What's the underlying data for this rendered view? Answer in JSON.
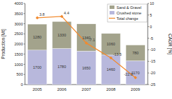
{
  "chart_data": {
    "type": "bar",
    "stacked": true,
    "categories": [
      "2005",
      "2006",
      "2007",
      "2008",
      "2009"
    ],
    "y_label": "Production [Mt]",
    "y2_label": "CAGR [%]",
    "ylim": [
      0,
      4000
    ],
    "yticks": [
      0,
      500,
      1000,
      1500,
      2000,
      2500,
      3000,
      3500,
      4000
    ],
    "y2lim": [
      -25,
      10
    ],
    "y2ticks": [
      -25,
      -20,
      -15,
      -10,
      -5,
      0,
      5,
      10
    ],
    "legend": "top-right",
    "data_labels": true,
    "series": [
      {
        "name": "Crushed stone",
        "type": "bar",
        "color": "#b8b8dc",
        "values": [
          1700,
          1780,
          1650,
          1460,
          1170
        ]
      },
      {
        "name": "Sand & Gravel",
        "type": "bar",
        "color": "#a3a38c",
        "values": [
          1280,
          1330,
          1340,
          1060,
          780
        ]
      },
      {
        "name": "Total change",
        "type": "line",
        "axis": "y2",
        "color": "#f28a2e",
        "marker": "diamond",
        "values": [
          3.8,
          4.4,
          -7.1,
          -13.5,
          -22.0
        ],
        "value_labels": [
          "3.8",
          "4.4",
          "-7.1",
          "-13.5",
          "-22.0"
        ]
      }
    ]
  }
}
